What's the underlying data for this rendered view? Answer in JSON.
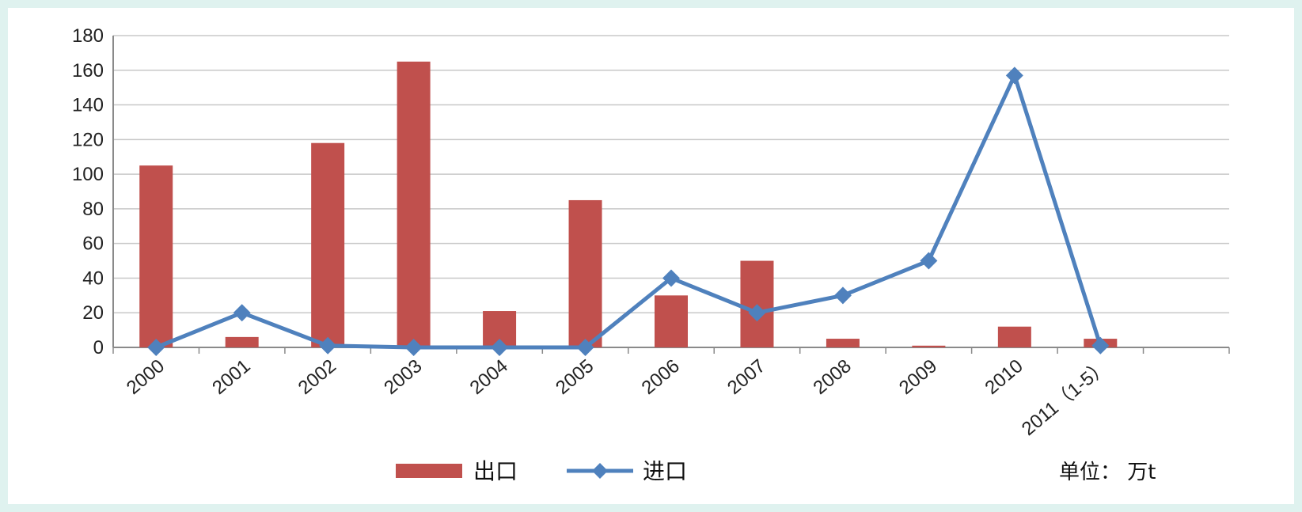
{
  "chart_data": {
    "type": "bar",
    "title": "",
    "xlabel": "",
    "ylabel": "",
    "categories": [
      "2000",
      "2001",
      "2002",
      "2003",
      "2004",
      "2005",
      "2006",
      "2007",
      "2008",
      "2009",
      "2010",
      "2011（1-5）"
    ],
    "ylim": [
      0,
      180
    ],
    "yticks": [
      0,
      20,
      40,
      60,
      80,
      100,
      120,
      140,
      160,
      180
    ],
    "grid": true,
    "legend_position": "bottom",
    "unit_label": "单位：  万t",
    "series": [
      {
        "name": "出口",
        "type": "bar",
        "color": "#c0504d",
        "values": [
          105,
          6,
          118,
          165,
          21,
          85,
          30,
          50,
          5,
          1,
          12,
          5
        ]
      },
      {
        "name": "进口",
        "type": "line",
        "marker": "diamond",
        "color": "#4f81bd",
        "values": [
          0,
          20,
          1,
          0,
          0,
          0,
          40,
          20,
          30,
          50,
          157,
          1
        ]
      }
    ]
  }
}
